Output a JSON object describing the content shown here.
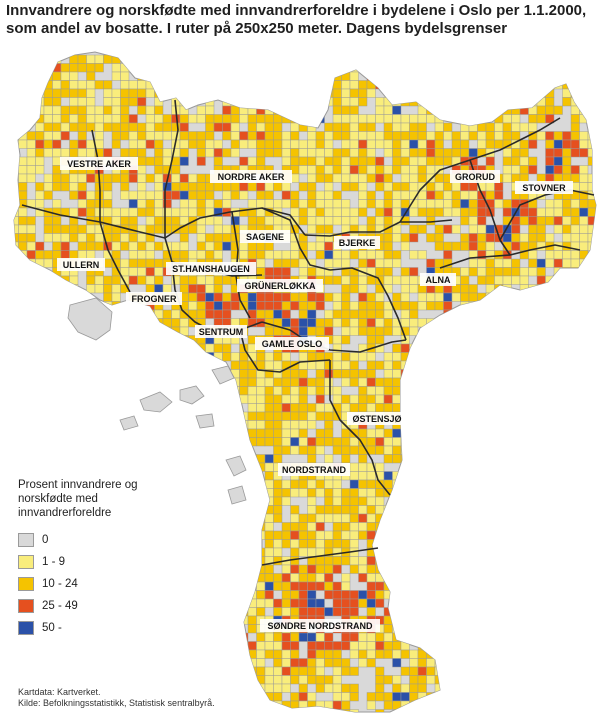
{
  "title": "Innvandrere og norskfødte med innvandrerforeldre i bydelene i Oslo per 1.1.2000, som andel av bosatte. I ruter på 250x250 meter. Dagens bydelsgrenser",
  "legend": {
    "title": "Prosent innvandrere og norskfødte med innvandrerforeldre",
    "classes": [
      {
        "label": "0",
        "color": "#d9d9d9"
      },
      {
        "label": "1 - 9",
        "color": "#f9ed7c"
      },
      {
        "label": "10 - 24",
        "color": "#f5c300"
      },
      {
        "label": "25 - 49",
        "color": "#e5501f"
      },
      {
        "label": "50 -",
        "color": "#2b51a8"
      }
    ]
  },
  "districts": [
    {
      "name": "VESTRE AKER"
    },
    {
      "name": "NORDRE AKER"
    },
    {
      "name": "GRORUD"
    },
    {
      "name": "STOVNER"
    },
    {
      "name": "ULLERN"
    },
    {
      "name": "SAGENE"
    },
    {
      "name": "BJERKE"
    },
    {
      "name": "ST.HANSHAUGEN"
    },
    {
      "name": "ALNA"
    },
    {
      "name": "GRÜNERLØKKA"
    },
    {
      "name": "FROGNER"
    },
    {
      "name": "SENTRUM"
    },
    {
      "name": "GAMLE OSLO"
    },
    {
      "name": "ØSTENSJØ"
    },
    {
      "name": "NORDSTRAND"
    },
    {
      "name": "SØNDRE NORDSTRAND"
    }
  ],
  "credits": {
    "kartdata": "Kartdata: Kartverket.",
    "kilde": "Kilde: Befolkningsstatistikk, Statistisk sentralbyrå."
  }
}
